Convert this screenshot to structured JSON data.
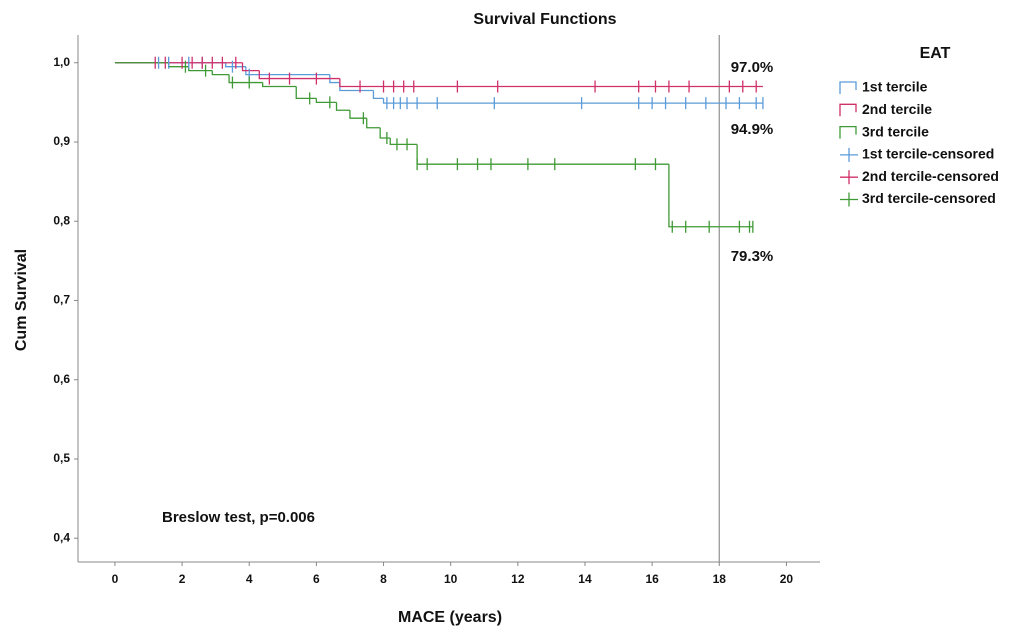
{
  "chart_data": {
    "type": "survival",
    "title": "Survival Functions",
    "x_label": "MACE (years)",
    "y_label": "Cum Survival",
    "legend_title": "EAT",
    "xlim": [
      -1.1,
      21
    ],
    "ylim": [
      0.37,
      1.035
    ],
    "xticks": [
      0,
      2,
      4,
      6,
      8,
      10,
      12,
      14,
      16,
      18,
      20
    ],
    "yticks": [
      {
        "value": 0.4,
        "label": "0,4"
      },
      {
        "value": 0.5,
        "label": "0,5"
      },
      {
        "value": 0.6,
        "label": "0,6"
      },
      {
        "value": 0.7,
        "label": "0,7"
      },
      {
        "value": 0.8,
        "label": "0,8"
      },
      {
        "value": 0.9,
        "label": "0,9"
      },
      {
        "value": 1.0,
        "label": "1,0"
      }
    ],
    "reference_line_x": 18,
    "annotations": [
      "97.0%",
      "94.9%",
      "79.3%",
      "Breslow test, p=0.006"
    ],
    "series": [
      {
        "name": "1st tercile",
        "kind": "step",
        "color": "#5b9bd9",
        "x": [
          0,
          3.3,
          3.9,
          6.4,
          6.7,
          7.7,
          8.0,
          19.3
        ],
        "values": [
          1.0,
          0.995,
          0.985,
          0.975,
          0.965,
          0.955,
          0.949,
          0.949
        ]
      },
      {
        "name": "2nd tercile",
        "kind": "step",
        "color": "#d0306a",
        "x": [
          0,
          3.8,
          4.3,
          6.7,
          19.3
        ],
        "values": [
          1.0,
          0.99,
          0.98,
          0.97,
          0.97
        ]
      },
      {
        "name": "3rd tercile",
        "kind": "step",
        "color": "#3f9a35",
        "x": [
          0,
          1.6,
          2.2,
          2.9,
          3.4,
          4.4,
          5.4,
          6.0,
          6.6,
          7.0,
          7.5,
          7.9,
          8.2,
          9.0,
          16.5,
          19.0
        ],
        "values": [
          1.0,
          0.995,
          0.99,
          0.985,
          0.975,
          0.97,
          0.955,
          0.95,
          0.94,
          0.93,
          0.918,
          0.905,
          0.897,
          0.872,
          0.793,
          0.793
        ]
      },
      {
        "name": "1st tercile-censored",
        "kind": "censored",
        "color": "#5b9bd9",
        "x": [
          1.3,
          1.6,
          2.2,
          2.6,
          3.5,
          4.0,
          8.1,
          8.3,
          8.5,
          8.7,
          9.0,
          9.6,
          11.3,
          13.9,
          15.6,
          16.0,
          16.4,
          17.0,
          17.6,
          18.2,
          18.6,
          19.1,
          19.3
        ],
        "values": [
          1.0,
          1.0,
          1.0,
          1.0,
          0.995,
          0.985,
          0.949,
          0.949,
          0.949,
          0.949,
          0.949,
          0.949,
          0.949,
          0.949,
          0.949,
          0.949,
          0.949,
          0.949,
          0.949,
          0.949,
          0.949,
          0.949,
          0.949
        ]
      },
      {
        "name": "2nd tercile-censored",
        "kind": "censored",
        "color": "#d0306a",
        "x": [
          1.2,
          1.5,
          2.0,
          2.3,
          2.6,
          2.9,
          3.2,
          3.6,
          4.6,
          5.2,
          6.0,
          7.3,
          8.0,
          8.3,
          8.6,
          8.9,
          10.2,
          11.4,
          14.3,
          15.6,
          16.1,
          16.5,
          17.1,
          18.3,
          18.7,
          19.1
        ],
        "values": [
          1.0,
          1.0,
          1.0,
          1.0,
          1.0,
          1.0,
          1.0,
          1.0,
          0.98,
          0.98,
          0.98,
          0.97,
          0.97,
          0.97,
          0.97,
          0.97,
          0.97,
          0.97,
          0.97,
          0.97,
          0.97,
          0.97,
          0.97,
          0.97,
          0.97,
          0.97
        ]
      },
      {
        "name": "3rd tercile-censored",
        "kind": "censored",
        "color": "#3f9a35",
        "x": [
          2.1,
          2.7,
          3.5,
          4.0,
          5.8,
          6.4,
          7.4,
          8.1,
          8.4,
          8.7,
          9.0,
          9.3,
          10.2,
          10.8,
          11.2,
          12.3,
          13.1,
          15.5,
          16.1,
          16.6,
          17.0,
          17.7,
          18.6,
          18.9,
          19.0
        ],
        "values": [
          0.995,
          0.99,
          0.975,
          0.975,
          0.955,
          0.95,
          0.93,
          0.905,
          0.897,
          0.897,
          0.872,
          0.872,
          0.872,
          0.872,
          0.872,
          0.872,
          0.872,
          0.872,
          0.872,
          0.793,
          0.793,
          0.793,
          0.793,
          0.793,
          0.793
        ]
      }
    ]
  }
}
